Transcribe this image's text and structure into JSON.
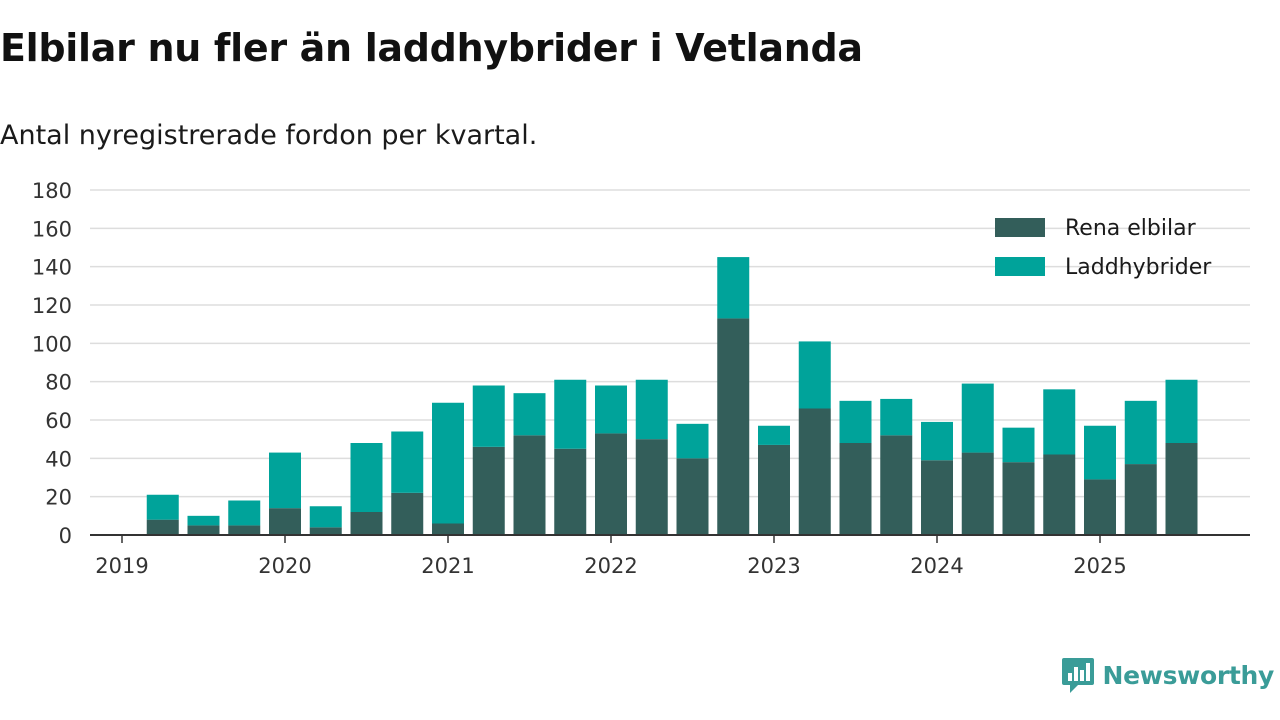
{
  "title": "Elbilar nu fler än laddhybrider i Vetlanda",
  "subtitle": "Antal nyregistrerade fordon per kvartal.",
  "brand": {
    "name": "Newsworthy",
    "icon": "newsworthy-logo-icon"
  },
  "colors": {
    "elbilar": "#335e5a",
    "laddhybrider": "#00a39a",
    "grid": "#dddddd",
    "axis": "#333333",
    "brand": "#3a9c98"
  },
  "chart_data": {
    "type": "bar",
    "stacked": true,
    "title": "Elbilar nu fler än laddhybrider i Vetlanda",
    "subtitle": "Antal nyregistrerade fordon per kvartal.",
    "xlabel": "",
    "ylabel": "",
    "ylim": [
      0,
      180
    ],
    "yticks": [
      0,
      20,
      40,
      60,
      80,
      100,
      120,
      140,
      160,
      180
    ],
    "grid": true,
    "legend_position": "top-right",
    "xticks": [
      "2019",
      "2020",
      "2021",
      "2022",
      "2023",
      "2024",
      "2025"
    ],
    "categories": [
      "2019 Q2",
      "2019 Q3",
      "2019 Q4",
      "2020 Q1",
      "2020 Q2",
      "2020 Q3",
      "2020 Q4",
      "2021 Q1",
      "2021 Q2",
      "2021 Q3",
      "2021 Q4",
      "2022 Q1",
      "2022 Q2",
      "2022 Q3",
      "2022 Q4",
      "2023 Q1",
      "2023 Q2",
      "2023 Q3",
      "2023 Q4",
      "2024 Q1",
      "2024 Q2",
      "2024 Q3",
      "2024 Q4",
      "2025 Q1",
      "2025 Q2",
      "2025 Q3"
    ],
    "series": [
      {
        "name": "Rena elbilar",
        "values": [
          8,
          5,
          5,
          14,
          4,
          12,
          22,
          6,
          46,
          52,
          45,
          53,
          50,
          40,
          113,
          47,
          66,
          48,
          52,
          39,
          43,
          38,
          42,
          29,
          37,
          48
        ]
      },
      {
        "name": "Laddhybrider",
        "values": [
          13,
          5,
          13,
          29,
          11,
          36,
          32,
          63,
          32,
          22,
          36,
          25,
          31,
          18,
          32,
          10,
          35,
          22,
          19,
          20,
          36,
          18,
          34,
          28,
          33,
          33
        ]
      }
    ]
  }
}
